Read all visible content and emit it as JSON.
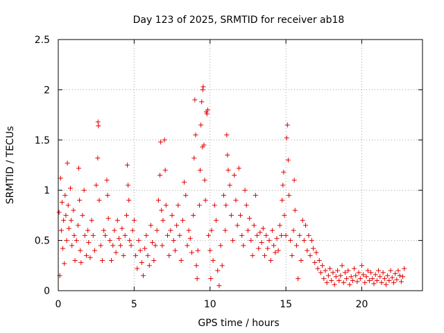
{
  "chart_data": {
    "type": "scatter",
    "title": "Day 123 of 2025, SRMTID for receiver ab18",
    "xlabel": "GPS time / hours",
    "ylabel": "SRMTID / TECUs",
    "xlim": [
      0,
      24
    ],
    "ylim": [
      0,
      2.5
    ],
    "xticks": [
      0,
      5,
      10,
      15,
      20
    ],
    "xtick_labels": [
      "0",
      "5",
      "10",
      "15",
      "20"
    ],
    "yticks": [
      0,
      0.5,
      1,
      1.5,
      2,
      2.5
    ],
    "ytick_labels": [
      "0",
      "0.5",
      "1",
      "1.5",
      "2",
      "2.5"
    ],
    "grid": true,
    "legend": "none",
    "marker": "+",
    "color": "#e00000",
    "series": [
      {
        "name": "SRMTID",
        "points": [
          [
            0.05,
            0.78
          ],
          [
            0.1,
            0.15
          ],
          [
            0.15,
            1.12
          ],
          [
            0.2,
            0.6
          ],
          [
            0.25,
            0.88
          ],
          [
            0.3,
            0.42
          ],
          [
            0.35,
            0.7
          ],
          [
            0.4,
            0.27
          ],
          [
            0.45,
            0.95
          ],
          [
            0.5,
            0.75
          ],
          [
            0.55,
            0.5
          ],
          [
            0.6,
            1.27
          ],
          [
            0.65,
            0.85
          ],
          [
            0.7,
            0.62
          ],
          [
            0.8,
            1.02
          ],
          [
            0.85,
            0.7
          ],
          [
            0.9,
            0.45
          ],
          [
            1.0,
            0.8
          ],
          [
            1.05,
            0.55
          ],
          [
            1.1,
            0.3
          ],
          [
            1.2,
            0.5
          ],
          [
            1.3,
            0.65
          ],
          [
            1.35,
            1.22
          ],
          [
            1.4,
            0.9
          ],
          [
            1.45,
            0.4
          ],
          [
            1.5,
            0.28
          ],
          [
            1.6,
            0.75
          ],
          [
            1.7,
            1.0
          ],
          [
            1.75,
            0.55
          ],
          [
            1.85,
            0.35
          ],
          [
            1.95,
            0.6
          ],
          [
            2.0,
            0.48
          ],
          [
            2.1,
            0.33
          ],
          [
            2.2,
            0.7
          ],
          [
            2.3,
            0.55
          ],
          [
            2.4,
            0.4
          ],
          [
            2.5,
            1.05
          ],
          [
            2.6,
            1.32
          ],
          [
            2.62,
            1.68
          ],
          [
            2.65,
            1.64
          ],
          [
            2.7,
            0.9
          ],
          [
            2.8,
            0.45
          ],
          [
            2.9,
            0.3
          ],
          [
            3.0,
            0.6
          ],
          [
            3.1,
            0.55
          ],
          [
            3.2,
            1.1
          ],
          [
            3.25,
            0.95
          ],
          [
            3.3,
            0.72
          ],
          [
            3.4,
            0.5
          ],
          [
            3.5,
            0.3
          ],
          [
            3.6,
            0.45
          ],
          [
            3.7,
            0.6
          ],
          [
            3.8,
            0.38
          ],
          [
            3.9,
            0.7
          ],
          [
            4.0,
            0.52
          ],
          [
            4.1,
            0.45
          ],
          [
            4.2,
            0.62
          ],
          [
            4.3,
            0.35
          ],
          [
            4.4,
            0.55
          ],
          [
            4.5,
            0.75
          ],
          [
            4.55,
            1.25
          ],
          [
            4.6,
            1.05
          ],
          [
            4.65,
            0.9
          ],
          [
            4.7,
            0.5
          ],
          [
            4.8,
            0.45
          ],
          [
            4.9,
            0.6
          ],
          [
            5.0,
            0.7
          ],
          [
            5.1,
            0.35
          ],
          [
            5.2,
            0.22
          ],
          [
            5.3,
            0.5
          ],
          [
            5.4,
            0.4
          ],
          [
            5.5,
            0.28
          ],
          [
            5.6,
            0.15
          ],
          [
            5.7,
            0.42
          ],
          [
            5.8,
            0.55
          ],
          [
            5.9,
            0.35
          ],
          [
            6.0,
            0.25
          ],
          [
            6.1,
            0.65
          ],
          [
            6.2,
            0.48
          ],
          [
            6.3,
            0.3
          ],
          [
            6.4,
            0.45
          ],
          [
            6.5,
            0.6
          ],
          [
            6.6,
            0.9
          ],
          [
            6.7,
            1.15
          ],
          [
            6.75,
            1.48
          ],
          [
            6.8,
            0.8
          ],
          [
            6.85,
            0.45
          ],
          [
            6.9,
            0.7
          ],
          [
            7.0,
            1.5
          ],
          [
            7.05,
            1.2
          ],
          [
            7.1,
            0.85
          ],
          [
            7.2,
            0.55
          ],
          [
            7.3,
            0.35
          ],
          [
            7.4,
            0.6
          ],
          [
            7.5,
            0.75
          ],
          [
            7.6,
            0.5
          ],
          [
            7.7,
            0.4
          ],
          [
            7.8,
            0.65
          ],
          [
            7.9,
            0.85
          ],
          [
            8.0,
            0.55
          ],
          [
            8.1,
            0.3
          ],
          [
            8.2,
            0.7
          ],
          [
            8.3,
            1.08
          ],
          [
            8.4,
            0.95
          ],
          [
            8.5,
            0.45
          ],
          [
            8.6,
            0.6
          ],
          [
            8.7,
            0.52
          ],
          [
            8.8,
            0.38
          ],
          [
            8.9,
            0.75
          ],
          [
            8.95,
            1.32
          ],
          [
            9.0,
            1.9
          ],
          [
            9.05,
            1.55
          ],
          [
            9.1,
            0.25
          ],
          [
            9.15,
            0.12
          ],
          [
            9.2,
            0.4
          ],
          [
            9.3,
            0.85
          ],
          [
            9.35,
            1.2
          ],
          [
            9.4,
            1.65
          ],
          [
            9.45,
            1.88
          ],
          [
            9.5,
            1.43
          ],
          [
            9.52,
            2.0
          ],
          [
            9.55,
            2.03
          ],
          [
            9.6,
            1.45
          ],
          [
            9.65,
            1.1
          ],
          [
            9.7,
            0.9
          ],
          [
            9.75,
            1.78
          ],
          [
            9.8,
            1.76
          ],
          [
            9.85,
            1.8
          ],
          [
            9.9,
            0.55
          ],
          [
            10.0,
            0.4
          ],
          [
            10.05,
            0.12
          ],
          [
            10.1,
            0.6
          ],
          [
            10.2,
            0.3
          ],
          [
            10.3,
            0.85
          ],
          [
            10.4,
            0.7
          ],
          [
            10.5,
            0.2
          ],
          [
            10.6,
            0.05
          ],
          [
            10.7,
            0.45
          ],
          [
            10.8,
            0.25
          ],
          [
            10.9,
            0.95
          ],
          [
            11.0,
            0.6
          ],
          [
            11.05,
            0.85
          ],
          [
            11.1,
            1.55
          ],
          [
            11.15,
            1.35
          ],
          [
            11.2,
            1.2
          ],
          [
            11.3,
            1.05
          ],
          [
            11.4,
            0.75
          ],
          [
            11.5,
            0.5
          ],
          [
            11.6,
            1.15
          ],
          [
            11.7,
            0.9
          ],
          [
            11.8,
            0.65
          ],
          [
            11.9,
            1.22
          ],
          [
            12.0,
            0.75
          ],
          [
            12.1,
            0.55
          ],
          [
            12.2,
            0.45
          ],
          [
            12.3,
            1.0
          ],
          [
            12.4,
            0.85
          ],
          [
            12.5,
            0.6
          ],
          [
            12.6,
            0.72
          ],
          [
            12.7,
            0.5
          ],
          [
            12.8,
            0.35
          ],
          [
            12.9,
            0.65
          ],
          [
            13.0,
            0.95
          ],
          [
            13.1,
            0.55
          ],
          [
            13.2,
            0.42
          ],
          [
            13.3,
            0.58
          ],
          [
            13.4,
            0.48
          ],
          [
            13.5,
            0.62
          ],
          [
            13.6,
            0.35
          ],
          [
            13.7,
            0.55
          ],
          [
            13.8,
            0.42
          ],
          [
            13.9,
            0.5
          ],
          [
            14.0,
            0.3
          ],
          [
            14.1,
            0.6
          ],
          [
            14.2,
            0.45
          ],
          [
            14.3,
            0.38
          ],
          [
            14.4,
            0.52
          ],
          [
            14.5,
            0.4
          ],
          [
            14.6,
            0.65
          ],
          [
            14.7,
            0.55
          ],
          [
            14.75,
            0.9
          ],
          [
            14.8,
            1.05
          ],
          [
            14.85,
            1.18
          ],
          [
            14.9,
            0.75
          ],
          [
            15.0,
            0.55
          ],
          [
            15.05,
            1.52
          ],
          [
            15.1,
            1.65
          ],
          [
            15.15,
            1.3
          ],
          [
            15.2,
            0.95
          ],
          [
            15.3,
            0.5
          ],
          [
            15.4,
            0.35
          ],
          [
            15.5,
            0.6
          ],
          [
            15.55,
            1.1
          ],
          [
            15.6,
            0.8
          ],
          [
            15.7,
            0.45
          ],
          [
            15.8,
            0.12
          ],
          [
            15.9,
            0.55
          ],
          [
            16.0,
            0.3
          ],
          [
            16.1,
            0.7
          ],
          [
            16.2,
            0.5
          ],
          [
            16.3,
            0.65
          ],
          [
            16.4,
            0.4
          ],
          [
            16.5,
            0.55
          ],
          [
            16.6,
            0.35
          ],
          [
            16.7,
            0.5
          ],
          [
            16.8,
            0.42
          ],
          [
            16.9,
            0.28
          ],
          [
            17.0,
            0.38
          ],
          [
            17.1,
            0.22
          ],
          [
            17.2,
            0.3
          ],
          [
            17.3,
            0.18
          ],
          [
            17.4,
            0.25
          ],
          [
            17.5,
            0.12
          ],
          [
            17.6,
            0.2
          ],
          [
            17.7,
            0.08
          ],
          [
            17.8,
            0.15
          ],
          [
            17.9,
            0.22
          ],
          [
            18.0,
            0.1
          ],
          [
            18.1,
            0.18
          ],
          [
            18.2,
            0.06
          ],
          [
            18.3,
            0.14
          ],
          [
            18.4,
            0.2
          ],
          [
            18.5,
            0.1
          ],
          [
            18.6,
            0.15
          ],
          [
            18.7,
            0.25
          ],
          [
            18.8,
            0.08
          ],
          [
            18.9,
            0.18
          ],
          [
            19.0,
            0.12
          ],
          [
            19.1,
            0.2
          ],
          [
            19.2,
            0.06
          ],
          [
            19.3,
            0.14
          ],
          [
            19.4,
            0.1
          ],
          [
            19.5,
            0.22
          ],
          [
            19.6,
            0.15
          ],
          [
            19.7,
            0.09
          ],
          [
            19.8,
            0.18
          ],
          [
            19.9,
            0.12
          ],
          [
            20.0,
            0.25
          ],
          [
            20.1,
            0.16
          ],
          [
            20.2,
            0.08
          ],
          [
            20.3,
            0.14
          ],
          [
            20.4,
            0.2
          ],
          [
            20.5,
            0.1
          ],
          [
            20.6,
            0.18
          ],
          [
            20.7,
            0.12
          ],
          [
            20.8,
            0.07
          ],
          [
            20.9,
            0.16
          ],
          [
            21.0,
            0.1
          ],
          [
            21.1,
            0.2
          ],
          [
            21.2,
            0.14
          ],
          [
            21.3,
            0.08
          ],
          [
            21.4,
            0.18
          ],
          [
            21.5,
            0.12
          ],
          [
            21.6,
            0.06
          ],
          [
            21.7,
            0.15
          ],
          [
            21.8,
            0.1
          ],
          [
            21.9,
            0.2
          ],
          [
            22.0,
            0.13
          ],
          [
            22.1,
            0.08
          ],
          [
            22.2,
            0.17
          ],
          [
            22.3,
            0.11
          ],
          [
            22.4,
            0.2
          ],
          [
            22.5,
            0.15
          ],
          [
            22.6,
            0.09
          ],
          [
            22.7,
            0.14
          ],
          [
            22.8,
            0.22
          ]
        ]
      }
    ]
  }
}
